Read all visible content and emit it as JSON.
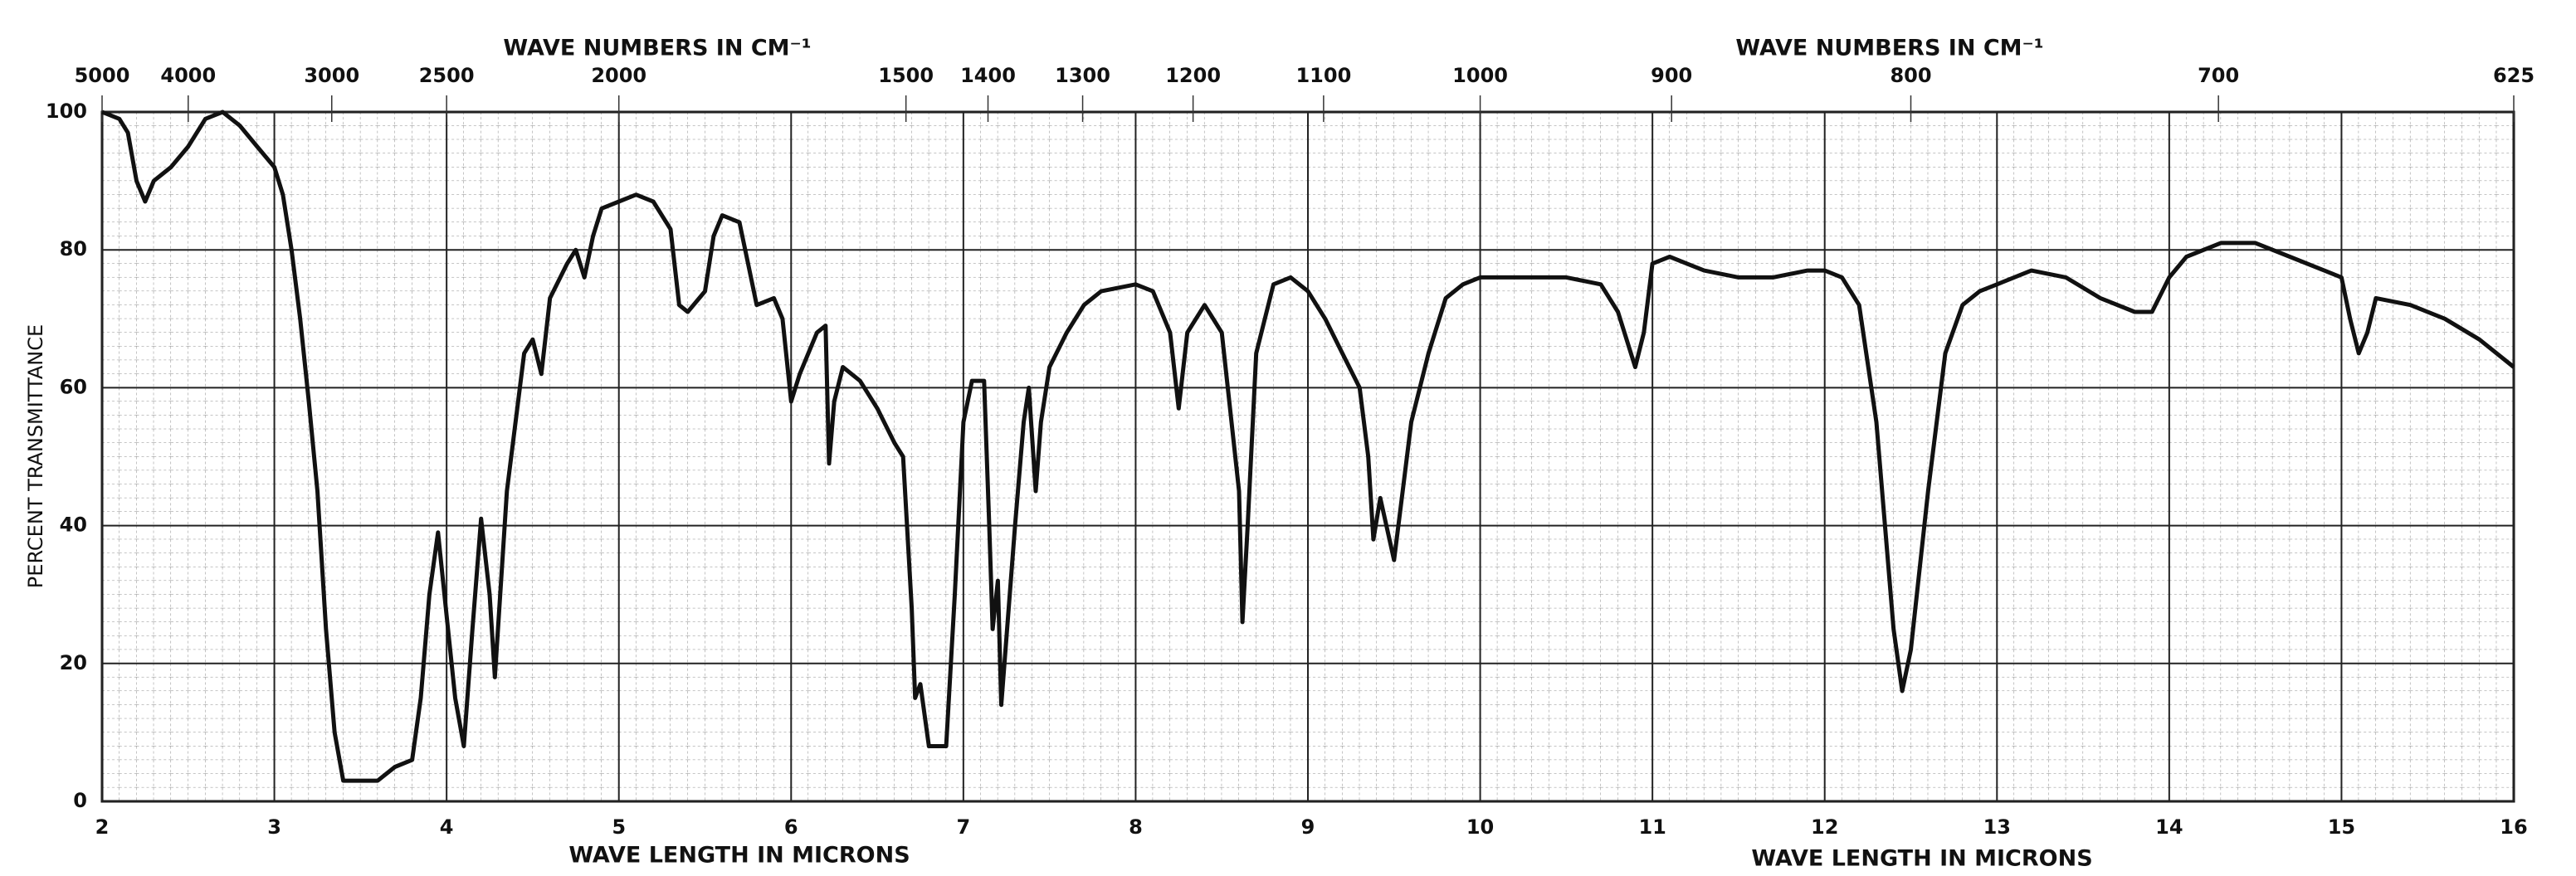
{
  "chart_data": {
    "type": "line",
    "x2label": "WAVE NUMBERS IN CM⁻¹",
    "xlabel": "WAVE LENGTH IN MICRONS",
    "ylabel": "PERCENT TRANSMITTANCE",
    "color": "#111111",
    "grid": true,
    "xlim": [
      2,
      16
    ],
    "ylim": [
      0,
      100
    ],
    "xticks": [
      2,
      3,
      4,
      5,
      6,
      7,
      8,
      9,
      10,
      11,
      12,
      13,
      14,
      15,
      16
    ],
    "yticks": [
      0,
      20,
      40,
      60,
      80,
      100
    ],
    "x2ticks": [
      5000,
      4000,
      3000,
      2500,
      2000,
      1500,
      1400,
      1300,
      1200,
      1100,
      1000,
      900,
      800,
      700,
      625
    ],
    "x": [
      2.0,
      2.1,
      2.15,
      2.2,
      2.25,
      2.3,
      2.4,
      2.5,
      2.6,
      2.7,
      2.8,
      2.9,
      3.0,
      3.05,
      3.1,
      3.15,
      3.2,
      3.25,
      3.3,
      3.35,
      3.4,
      3.5,
      3.6,
      3.7,
      3.8,
      3.85,
      3.9,
      3.95,
      4.0,
      4.05,
      4.1,
      4.15,
      4.2,
      4.25,
      4.28,
      4.35,
      4.45,
      4.5,
      4.55,
      4.6,
      4.7,
      4.75,
      4.8,
      4.85,
      4.9,
      5.0,
      5.1,
      5.2,
      5.3,
      5.35,
      5.4,
      5.5,
      5.55,
      5.6,
      5.7,
      5.75,
      5.8,
      5.9,
      5.95,
      6.0,
      6.05,
      6.1,
      6.15,
      6.2,
      6.22,
      6.25,
      6.3,
      6.4,
      6.5,
      6.6,
      6.65,
      6.7,
      6.72,
      6.75,
      6.8,
      6.9,
      6.95,
      7.0,
      7.05,
      7.12,
      7.15,
      7.17,
      7.2,
      7.22,
      7.3,
      7.35,
      7.38,
      7.42,
      7.45,
      7.5,
      7.6,
      7.7,
      7.8,
      8.0,
      8.1,
      8.2,
      8.25,
      8.3,
      8.4,
      8.5,
      8.6,
      8.62,
      8.65,
      8.7,
      8.8,
      8.9,
      9.0,
      9.1,
      9.2,
      9.3,
      9.35,
      9.38,
      9.42,
      9.5,
      9.55,
      9.6,
      9.7,
      9.8,
      9.9,
      10.0,
      10.2,
      10.5,
      10.7,
      10.8,
      10.9,
      10.95,
      11.0,
      11.1,
      11.3,
      11.5,
      11.7,
      11.9,
      12.0,
      12.1,
      12.2,
      12.3,
      12.4,
      12.45,
      12.5,
      12.6,
      12.7,
      12.8,
      12.9,
      13.0,
      13.2,
      13.4,
      13.6,
      13.8,
      13.9,
      14.0,
      14.1,
      14.3,
      14.5,
      14.7,
      14.9,
      15.0,
      15.05,
      15.1,
      15.15,
      15.2,
      15.4,
      15.6,
      15.8,
      16.0
    ],
    "values": [
      100,
      99,
      97,
      90,
      87,
      90,
      92,
      95,
      99,
      100,
      98,
      95,
      92,
      88,
      80,
      70,
      58,
      45,
      25,
      10,
      3,
      3,
      3,
      5,
      6,
      15,
      30,
      39,
      27,
      15,
      8,
      25,
      41,
      30,
      18,
      45,
      65,
      67,
      62,
      73,
      78,
      80,
      76,
      82,
      86,
      87,
      88,
      87,
      83,
      72,
      71,
      74,
      82,
      85,
      84,
      78,
      72,
      73,
      70,
      58,
      62,
      65,
      68,
      69,
      49,
      58,
      63,
      61,
      57,
      52,
      50,
      28,
      15,
      17,
      8,
      8,
      30,
      55,
      61,
      61,
      40,
      25,
      32,
      14,
      40,
      55,
      60,
      45,
      55,
      63,
      68,
      72,
      74,
      75,
      74,
      68,
      57,
      68,
      72,
      68,
      45,
      26,
      40,
      65,
      75,
      76,
      74,
      70,
      65,
      60,
      50,
      38,
      44,
      35,
      45,
      55,
      65,
      73,
      75,
      76,
      76,
      76,
      75,
      71,
      63,
      68,
      78,
      79,
      77,
      76,
      76,
      77,
      77,
      76,
      72,
      55,
      25,
      16,
      22,
      45,
      65,
      72,
      74,
      75,
      77,
      76,
      73,
      71,
      71,
      76,
      79,
      81,
      81,
      79,
      77,
      76,
      70,
      65,
      68,
      73,
      72,
      70,
      67,
      63
    ]
  }
}
